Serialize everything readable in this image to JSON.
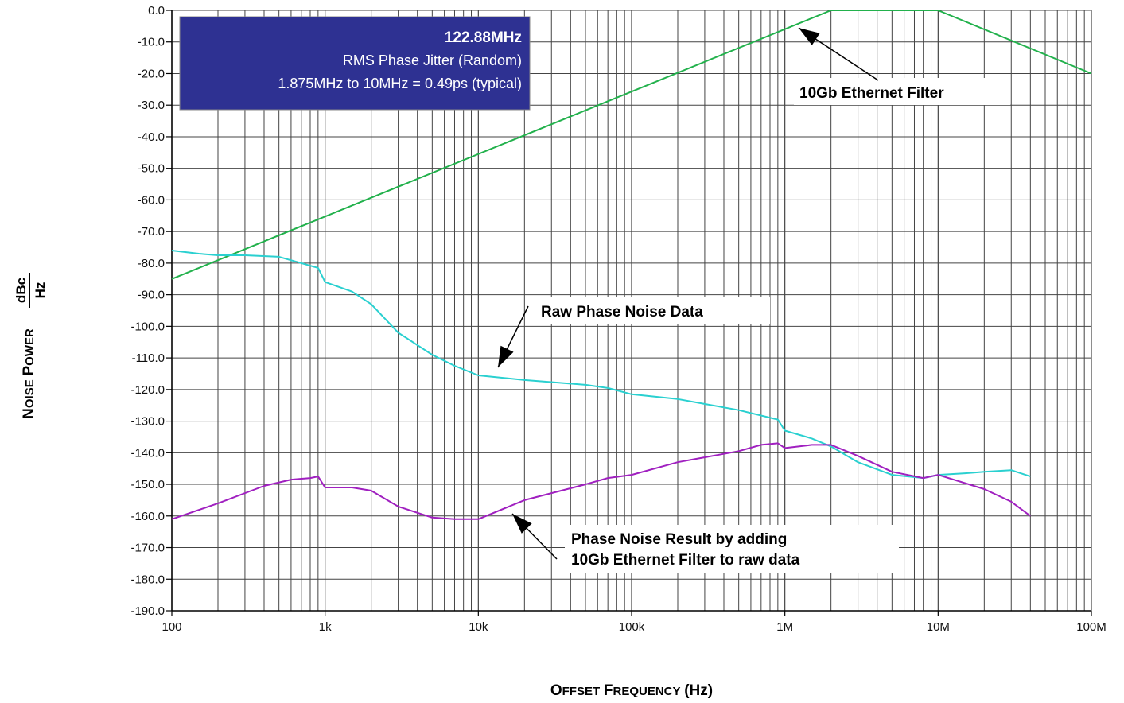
{
  "chart_data": {
    "type": "line",
    "x_scale": "log",
    "xlim": [
      100,
      100000000
    ],
    "ylim": [
      -190,
      0
    ],
    "grid": true,
    "x_tick_labels": [
      "100",
      "1k",
      "10k",
      "100k",
      "1M",
      "10M",
      "100M"
    ],
    "y_tick_values": [
      0,
      -10,
      -20,
      -30,
      -40,
      -50,
      -60,
      -70,
      -80,
      -90,
      -100,
      -110,
      -120,
      -130,
      -140,
      -150,
      -160,
      -170,
      -180,
      -190
    ],
    "y_tick_labels": [
      "0.0",
      "-10.0",
      "-20.0",
      "-30.0",
      "-40.0",
      "-50.0",
      "-60.0",
      "-70.0",
      "-80.0",
      "-90.0",
      "-100.0",
      "-110.0",
      "-120.0",
      "-130.0",
      "-140.0",
      "-150.0",
      "-160.0",
      "-170.0",
      "-180.0",
      "-190.0"
    ],
    "xlabel": "Offset Frequency (Hz)",
    "ylabel_main": "Noise Power",
    "ylabel_num": "dBc",
    "ylabel_den": "Hz",
    "info_box": {
      "title": "122.88MHz",
      "line1": "RMS Phase Jitter (Random)",
      "line2": "1.875MHz to 10MHz = 0.49ps (typical)",
      "color": "#2e3192"
    },
    "annotations": {
      "filter": "10Gb Ethernet Filter",
      "raw": "Raw Phase Noise Data",
      "result_line1": "Phase Noise Result by adding",
      "result_line2": "10Gb Ethernet Filter to raw data"
    },
    "series": [
      {
        "color": "#22b14c",
        "x": [
          100,
          2000000,
          10000000,
          100000000
        ],
        "y": [
          -85,
          0,
          0,
          -20
        ]
      },
      {
        "color": "#2ad0d0",
        "x": [
          100,
          150,
          200,
          300,
          500,
          700,
          900,
          1000,
          1500,
          2000,
          3000,
          5000,
          7000,
          10000,
          20000,
          50000,
          70000,
          100000,
          200000,
          500000,
          900000,
          1000000,
          1500000,
          2000000,
          3000000,
          5000000,
          8000000,
          10000000,
          15000000,
          20000000,
          30000000,
          40000000
        ],
        "y": [
          -76,
          -77,
          -77.5,
          -77.5,
          -78,
          -80,
          -81.5,
          -86,
          -89,
          -93,
          -102,
          -109,
          -112.5,
          -115.5,
          -117,
          -118.5,
          -119.5,
          -121.5,
          -123,
          -126.5,
          -129.5,
          -133,
          -135.5,
          -138,
          -143,
          -147,
          -148,
          -147,
          -146.5,
          -146,
          -145.5,
          -147.5
        ]
      },
      {
        "color": "#a020c0",
        "x": [
          100,
          200,
          400,
          600,
          800,
          900,
          1000,
          1500,
          2000,
          3000,
          5000,
          7000,
          10000,
          20000,
          50000,
          70000,
          100000,
          200000,
          500000,
          700000,
          900000,
          1000000,
          1500000,
          2000000,
          3000000,
          5000000,
          8000000,
          10000000,
          20000000,
          30000000,
          40000000
        ],
        "y": [
          -161,
          -156,
          -150.5,
          -148.5,
          -148,
          -147.5,
          -151,
          -151,
          -152,
          -157,
          -160.5,
          -161,
          -161,
          -155,
          -150,
          -148,
          -147,
          -143,
          -139.5,
          -137.5,
          -137,
          -138.5,
          -137.5,
          -137.5,
          -141,
          -146,
          -148,
          -147,
          -151.5,
          -155.5,
          -160
        ]
      }
    ]
  }
}
